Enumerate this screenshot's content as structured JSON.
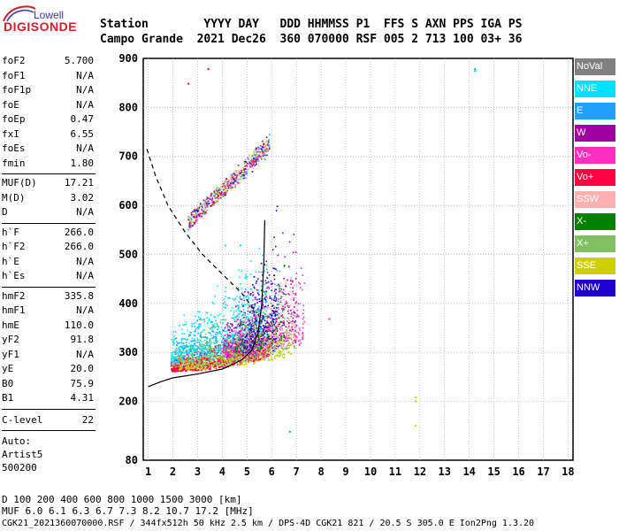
{
  "logo": {
    "brand_top": "Lowell",
    "brand_bottom": "DIGISONDE"
  },
  "header": {
    "labels": "Station        YYYY DAY   DDD HHMMSS P1  FFS S AXN PPS IGA PS",
    "values": "Campo Grande  2021 Dec26  360 070000 RSF 005 2 713 100 03+ 36"
  },
  "params": {
    "group1": [
      {
        "name": "foF2",
        "value": "5.700"
      },
      {
        "name": "foF1",
        "value": "N/A"
      },
      {
        "name": "foF1p",
        "value": "N/A"
      },
      {
        "name": "foE",
        "value": "N/A"
      },
      {
        "name": "foEp",
        "value": "0.47"
      },
      {
        "name": "fxI",
        "value": "6.55"
      },
      {
        "name": "foEs",
        "value": "N/A"
      },
      {
        "name": "fmin",
        "value": "1.80"
      }
    ],
    "group2": [
      {
        "name": "MUF(D)",
        "value": "17.21"
      },
      {
        "name": "M(D)",
        "value": "3.02"
      },
      {
        "name": "D",
        "value": "N/A"
      }
    ],
    "group3": [
      {
        "name": "h`F",
        "value": "266.0"
      },
      {
        "name": "h`F2",
        "value": "266.0"
      },
      {
        "name": "h`E",
        "value": "N/A"
      },
      {
        "name": "h`Es",
        "value": "N/A"
      }
    ],
    "group4": [
      {
        "name": "hmF2",
        "value": "335.8"
      },
      {
        "name": "hmF1",
        "value": "N/A"
      },
      {
        "name": "hmE",
        "value": "110.0"
      },
      {
        "name": "yF2",
        "value": "91.8"
      },
      {
        "name": "yF1",
        "value": "N/A"
      },
      {
        "name": "yE",
        "value": "20.0"
      },
      {
        "name": "B0",
        "value": "75.9"
      },
      {
        "name": "B1",
        "value": "4.31"
      }
    ],
    "clevel": {
      "name": "C-level",
      "value": "22"
    },
    "auto_lines": [
      "Auto:",
      "Artist5",
      "500200"
    ]
  },
  "legend": [
    {
      "label": "NoVal",
      "color": "#808080"
    },
    {
      "label": "NNE",
      "color": "#00e0ff"
    },
    {
      "label": "E",
      "color": "#20a0ff"
    },
    {
      "label": "W",
      "color": "#a000a0"
    },
    {
      "label": "Vo-",
      "color": "#ff30c0"
    },
    {
      "label": "Vo+",
      "color": "#ff0040"
    },
    {
      "label": "SSW",
      "color": "#ffb0b0"
    },
    {
      "label": "X-",
      "color": "#008000"
    },
    {
      "label": "X+",
      "color": "#80c060"
    },
    {
      "label": "SSE",
      "color": "#d0d000"
    },
    {
      "label": "NNW",
      "color": "#2000d0"
    }
  ],
  "footer": {
    "d_line": "D     100  200  400  600  800 1000 1500 3000 [km]",
    "muf_line": "MUF   6.0  6.1  6.3  6.7  7.3  8.2 10.7 17.2 [MHz]",
    "file_line": "CGK21_2021360070000.RSF / 344fx512h 50 kHz 2.5 km / DPS-4D CGK21 821 / 20.5 S 305.0 E Ion2Png 1.3.20"
  },
  "chart_data": {
    "type": "scatter",
    "title": "",
    "xlabel": "",
    "ylabel": "",
    "xlim": [
      0.8,
      18.2
    ],
    "ylim": [
      80,
      900
    ],
    "x_ticks": [
      1,
      2,
      3,
      4,
      5,
      6,
      7,
      8,
      9,
      10,
      11,
      12,
      13,
      14,
      15,
      16,
      17,
      18
    ],
    "y_ticks": [
      80,
      200,
      300,
      400,
      500,
      600,
      700,
      800,
      900
    ],
    "grid": true,
    "legend_placement": "right",
    "clusters": [
      {
        "name": "NNE",
        "xmin": 1.9,
        "xmax": 5.8,
        "ymin": 280,
        "ymax": 440,
        "count": 900
      },
      {
        "name": "E",
        "xmin": 2.0,
        "xmax": 6.3,
        "ymin": 270,
        "ymax": 420,
        "count": 500
      },
      {
        "name": "Vo+",
        "xmin": 1.9,
        "xmax": 5.9,
        "ymin": 262,
        "ymax": 320,
        "count": 700
      },
      {
        "name": "W",
        "xmin": 4.0,
        "xmax": 7.0,
        "ymin": 290,
        "ymax": 480,
        "count": 450
      },
      {
        "name": "Vo-",
        "xmin": 4.0,
        "xmax": 7.3,
        "ymin": 290,
        "ymax": 420,
        "count": 350
      },
      {
        "name": "SSE",
        "xmin": 2.2,
        "xmax": 6.8,
        "ymin": 265,
        "ymax": 330,
        "count": 350
      },
      {
        "name": "X+",
        "xmin": 2.0,
        "xmax": 7.0,
        "ymin": 270,
        "ymax": 390,
        "count": 300
      },
      {
        "name": "NNW",
        "xmin": 4.8,
        "xmax": 6.2,
        "ymin": 300,
        "ymax": 520,
        "count": 250
      },
      {
        "name": "SSW",
        "xmin": 4.5,
        "xmax": 7.0,
        "ymin": 300,
        "ymax": 470,
        "count": 200
      },
      {
        "name": "X-",
        "xmin": 4.5,
        "xmax": 6.5,
        "ymin": 300,
        "ymax": 420,
        "count": 120
      }
    ],
    "trace2": {
      "x0": 2.6,
      "y0": 570,
      "x1": 5.9,
      "y1": 720,
      "count": 600
    },
    "outliers": [
      {
        "x": 2.6,
        "y": 850,
        "color": "#ff0040"
      },
      {
        "x": 3.4,
        "y": 880,
        "color": "#ff0040"
      },
      {
        "x": 14.2,
        "y": 880,
        "color": "#00c0c0"
      },
      {
        "x": 14.2,
        "y": 876,
        "color": "#00c0c0"
      },
      {
        "x": 11.8,
        "y": 210,
        "color": "#d0d000"
      },
      {
        "x": 11.8,
        "y": 202,
        "color": "#d0d000"
      },
      {
        "x": 11.8,
        "y": 152,
        "color": "#d0d000"
      },
      {
        "x": 6.7,
        "y": 140,
        "color": "#20a0ff"
      },
      {
        "x": 8.3,
        "y": 370,
        "color": "#ff30c0"
      },
      {
        "x": 4.1,
        "y": 520,
        "color": "#00e0ff"
      },
      {
        "x": 4.7,
        "y": 520,
        "color": "#00e0ff"
      }
    ],
    "profile_solid": [
      {
        "x": 1.0,
        "y": 230
      },
      {
        "x": 1.5,
        "y": 240
      },
      {
        "x": 2.0,
        "y": 248
      },
      {
        "x": 3.0,
        "y": 256
      },
      {
        "x": 4.0,
        "y": 266
      },
      {
        "x": 4.8,
        "y": 285
      },
      {
        "x": 5.2,
        "y": 305
      },
      {
        "x": 5.45,
        "y": 340
      },
      {
        "x": 5.6,
        "y": 400
      },
      {
        "x": 5.68,
        "y": 480
      },
      {
        "x": 5.72,
        "y": 570
      }
    ],
    "profile_dashed": [
      {
        "x": 0.95,
        "y": 715
      },
      {
        "x": 1.3,
        "y": 660
      },
      {
        "x": 1.8,
        "y": 600
      },
      {
        "x": 2.5,
        "y": 545
      },
      {
        "x": 3.2,
        "y": 500
      },
      {
        "x": 4.0,
        "y": 460
      },
      {
        "x": 4.8,
        "y": 420
      },
      {
        "x": 5.4,
        "y": 380
      }
    ]
  }
}
